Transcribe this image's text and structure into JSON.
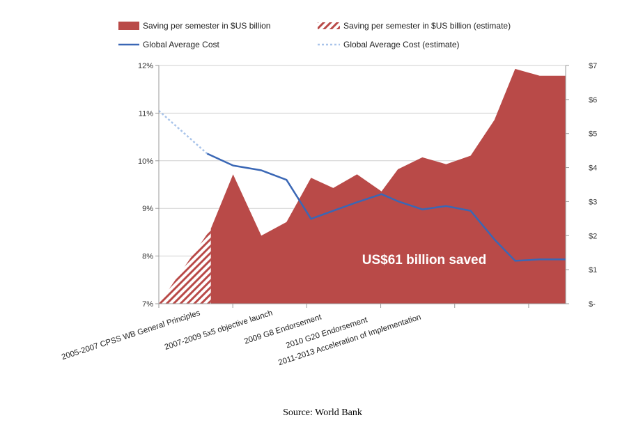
{
  "chart_data": {
    "type": "area",
    "title": "",
    "left_axis": {
      "label": "",
      "ylim": [
        7,
        12
      ],
      "ticks": [
        "7%",
        "8%",
        "9%",
        "10%",
        "11%",
        "12%"
      ],
      "tick_values": [
        7,
        8,
        9,
        10,
        11,
        12
      ]
    },
    "right_axis": {
      "label": "",
      "ylim": [
        0,
        7
      ],
      "ticks": [
        "$-",
        "$1",
        "$2",
        "$3",
        "$4",
        "$5",
        "$6",
        "$7"
      ],
      "tick_values": [
        0,
        1,
        2,
        3,
        4,
        5,
        6,
        7
      ]
    },
    "categories": [
      "2005-2007 CPSS WB General Principles",
      "2007-2009 5x5 objective launch",
      "2009 G8 Endorsement",
      "2010 G20 Endorsement",
      "2011-2013 Acceleration of Implementation"
    ],
    "x": [
      0,
      0.65,
      1.0,
      1.38,
      1.72,
      2.05,
      2.35,
      2.67,
      3.0,
      3.22,
      3.55,
      3.87,
      4.2,
      4.52,
      4.8,
      5.13,
      5.48
    ],
    "series": [
      {
        "name": "Saving per semester in $US billion",
        "axis": "right",
        "kind": "area",
        "x": [
          0.7,
          1.0,
          1.38,
          1.72,
          2.05,
          2.35,
          2.67,
          3.0,
          3.22,
          3.55,
          3.87,
          4.2,
          4.52,
          4.8,
          5.13,
          5.48
        ],
        "values": [
          2.2,
          3.8,
          2.0,
          2.4,
          3.7,
          3.4,
          3.8,
          3.3,
          3.95,
          4.3,
          4.1,
          4.35,
          5.4,
          6.9,
          6.7,
          6.7
        ]
      },
      {
        "name": "Saving per semester in $US billion (estimate)",
        "axis": "right",
        "kind": "area-hatched",
        "x": [
          0,
          0.7
        ],
        "values": [
          0,
          2.2
        ]
      },
      {
        "name": "Global Average Cost",
        "axis": "left",
        "kind": "line",
        "x": [
          0.65,
          1.0,
          1.38,
          1.72,
          2.05,
          2.35,
          2.67,
          3.0,
          3.22,
          3.55,
          3.87,
          4.2,
          4.52,
          4.8,
          5.13,
          5.48
        ],
        "values": [
          10.15,
          9.9,
          9.8,
          9.6,
          8.78,
          8.95,
          9.13,
          9.3,
          9.15,
          8.98,
          9.05,
          8.95,
          8.35,
          7.9,
          7.93,
          7.93
        ]
      },
      {
        "name": "Global Average Cost (estimate)",
        "axis": "left",
        "kind": "line-dotted",
        "x": [
          0,
          0.65
        ],
        "values": [
          11.05,
          10.15
        ]
      }
    ],
    "legend": {
      "placement": "top",
      "items": [
        "Saving per semester in $US billion",
        "Saving per semester in $US billion (estimate)",
        "Global Average Cost",
        "Global Average Cost (estimate)"
      ]
    },
    "annotations": [
      "US$61 billion saved"
    ],
    "grid": true,
    "colors": {
      "area": "#b94a48",
      "line": "#3a67b5",
      "line_estimate": "#a9c4ea",
      "grid": "#cfcfcf",
      "axis": "#9a9a9a"
    }
  },
  "source": "Source: World Bank"
}
